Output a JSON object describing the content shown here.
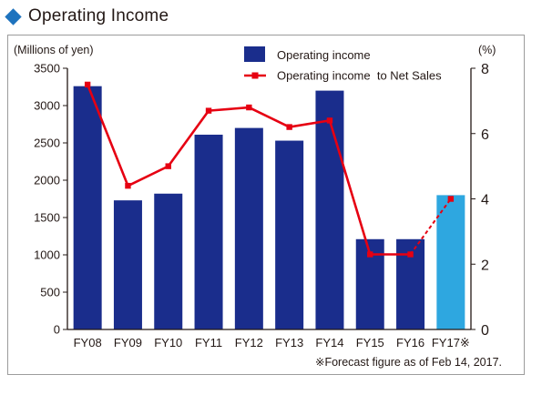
{
  "title": "Operating Income",
  "colors": {
    "accent": "#1e73be",
    "bar": "#1a2d8c",
    "forecast_bar": "#2ea7e0",
    "line": "#e60012"
  },
  "footnote": "※Forecast figure as of Feb 14, 2017.",
  "chart_data": {
    "type": "bar",
    "title": "Operating Income",
    "categories": [
      "FY08",
      "FY09",
      "FY10",
      "FY11",
      "FY12",
      "FY13",
      "FY14",
      "FY15",
      "FY16",
      "FY17※"
    ],
    "series": [
      {
        "name": "Operating income",
        "type": "bar",
        "axis": "left",
        "values": [
          3260,
          1730,
          1820,
          2610,
          2700,
          2530,
          3200,
          1210,
          1210,
          1800
        ]
      },
      {
        "name": "Operating income  to Net Sales",
        "type": "line",
        "axis": "right",
        "values": [
          7.5,
          4.4,
          5.0,
          6.7,
          6.8,
          6.2,
          6.4,
          2.3,
          2.3,
          4.0
        ]
      }
    ],
    "forecast_index": 9,
    "ylabel_left": "(Millions of yen)",
    "ylabel_right": "(%)",
    "ylim_left": [
      0,
      3500
    ],
    "yticks_left": [
      0,
      500,
      1000,
      1500,
      2000,
      2500,
      3000,
      3500
    ],
    "ylim_right": [
      0,
      8
    ],
    "yticks_right": [
      0,
      2,
      4,
      6,
      8
    ],
    "grid": false,
    "legend_position": "top-center"
  }
}
